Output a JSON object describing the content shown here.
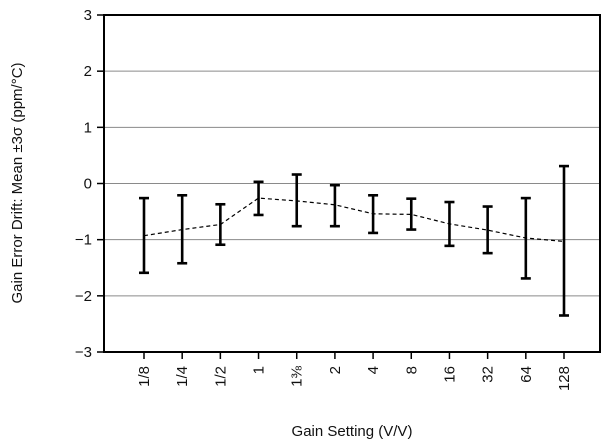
{
  "chart_data": {
    "type": "line",
    "title": "",
    "xlabel": "Gain Setting (V/V)",
    "ylabel": "Gain Error Drift: Mean ±3σ (ppm/°C)",
    "categories": [
      "1/8",
      "1/4",
      "1/2",
      "1",
      "1⅜",
      "2",
      "4",
      "8",
      "16",
      "32",
      "64",
      "128"
    ],
    "ylim": [
      -3,
      3
    ],
    "yticks": [
      "−3",
      "−2",
      "−1",
      "0",
      "1",
      "2",
      "3"
    ],
    "grid": true,
    "series": [
      {
        "mean": [
          -0.93,
          -0.82,
          -0.73,
          -0.26,
          -0.31,
          -0.38,
          -0.54,
          -0.55,
          -0.72,
          -0.83,
          -0.97,
          -1.03
        ],
        "upper": [
          -0.26,
          -0.21,
          -0.37,
          0.03,
          0.16,
          -0.03,
          -0.21,
          -0.27,
          -0.33,
          -0.41,
          -0.26,
          0.31
        ],
        "lower": [
          -1.59,
          -1.42,
          -1.09,
          -0.56,
          -0.76,
          -0.76,
          -0.88,
          -0.82,
          -1.11,
          -1.24,
          -1.69,
          -2.35
        ]
      }
    ]
  }
}
